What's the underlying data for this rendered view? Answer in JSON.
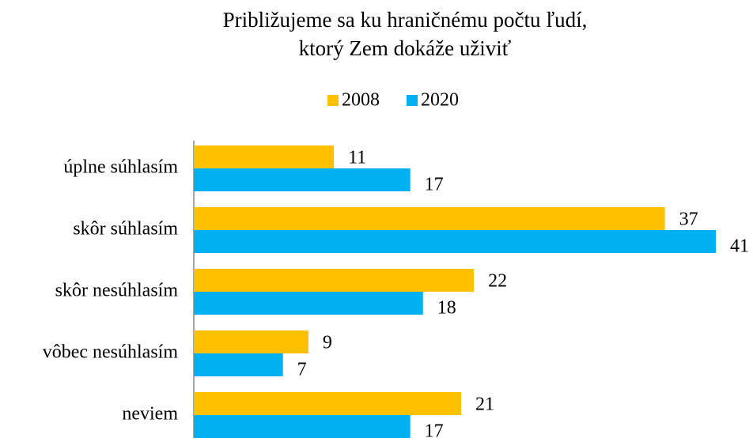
{
  "chart_data": {
    "type": "hbar",
    "title": [
      "Približujeme sa ku hraničnému počtu ľudí,",
      "ktorý Zem dokáže uživiť"
    ],
    "categories": [
      "úplne súhlasím",
      "skôr súhlasím",
      "skôr nesúhlasím",
      "vôbec nesúhlasím",
      "neviem"
    ],
    "series": [
      {
        "name": "2008",
        "color": "#FFC000",
        "values": [
          11,
          37,
          22,
          9,
          21
        ]
      },
      {
        "name": "2020",
        "color": "#00B0F0",
        "values": [
          17,
          41,
          18,
          7,
          17
        ]
      }
    ],
    "legend": "top"
  }
}
